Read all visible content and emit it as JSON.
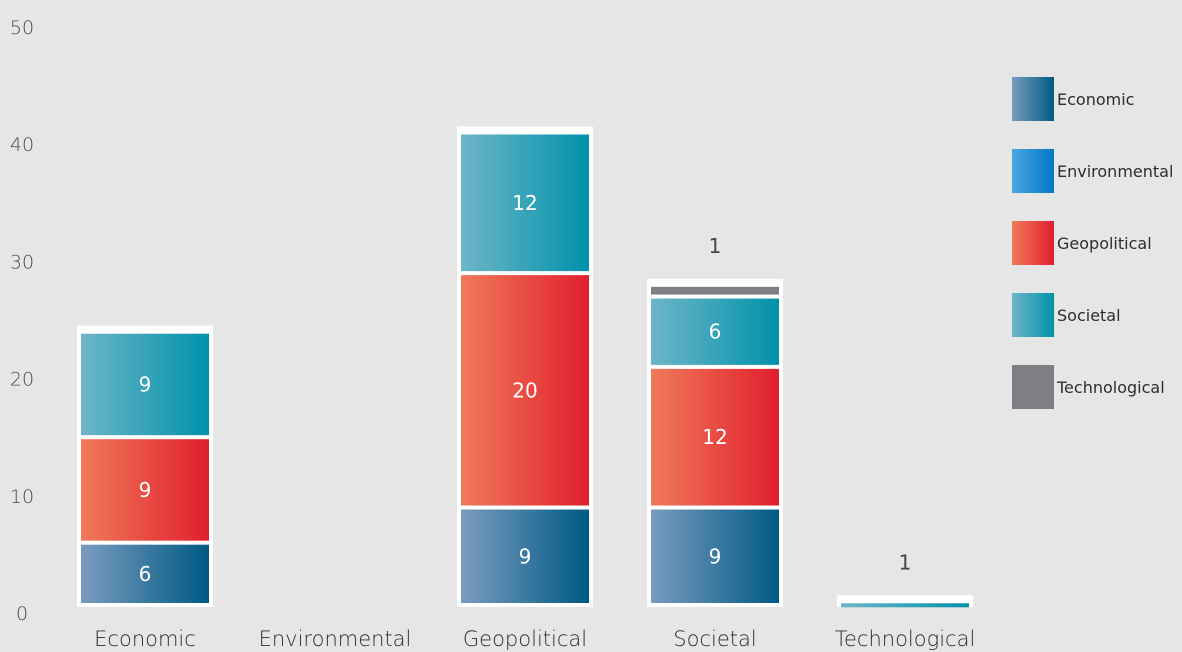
{
  "chart_data": {
    "type": "bar",
    "stacked": true,
    "categories": [
      "Economic",
      "Environmental",
      "Geopolitical",
      "Societal",
      "Technological"
    ],
    "series": [
      {
        "name": "Economic",
        "values": [
          6,
          0,
          9,
          9,
          0
        ],
        "color_start": "#7a9bbf",
        "color_end": "#005a84"
      },
      {
        "name": "Environmental",
        "values": [
          0,
          0,
          0,
          0,
          0
        ],
        "color_start": "#4aa8e2",
        "color_end": "#0077c8"
      },
      {
        "name": "Geopolitical",
        "values": [
          9,
          0,
          20,
          12,
          0
        ],
        "color_start": "#f07a5a",
        "color_end": "#e01f2d"
      },
      {
        "name": "Societal",
        "values": [
          9,
          0,
          12,
          6,
          1
        ],
        "color_start": "#6eb5c8",
        "color_end": "#0092aa"
      },
      {
        "name": "Technological",
        "values": [
          0,
          0,
          0,
          1,
          0
        ],
        "color_start": "#7d7f84",
        "color_end": "#7d7f84"
      }
    ],
    "segment_labels": [
      {
        "category": "Economic",
        "series": "Economic",
        "text": "6"
      },
      {
        "category": "Economic",
        "series": "Geopolitical",
        "text": "9"
      },
      {
        "category": "Economic",
        "series": "Societal",
        "text": "9"
      },
      {
        "category": "Geopolitical",
        "series": "Economic",
        "text": "9"
      },
      {
        "category": "Geopolitical",
        "series": "Geopolitical",
        "text": "20"
      },
      {
        "category": "Geopolitical",
        "series": "Societal",
        "text": "12"
      },
      {
        "category": "Societal",
        "series": "Economic",
        "text": "9"
      },
      {
        "category": "Societal",
        "series": "Geopolitical",
        "text": "12"
      },
      {
        "category": "Societal",
        "series": "Societal",
        "text": "6"
      }
    ],
    "top_labels": [
      {
        "category": "Societal",
        "text": "1"
      },
      {
        "category": "Technological",
        "text": "1"
      }
    ],
    "y_ticks": [
      "0",
      "10",
      "20",
      "30",
      "40",
      "50"
    ],
    "ylim": [
      0,
      50
    ],
    "legend_position": "right",
    "grid": false,
    "title": "",
    "xlabel": "",
    "ylabel": ""
  }
}
